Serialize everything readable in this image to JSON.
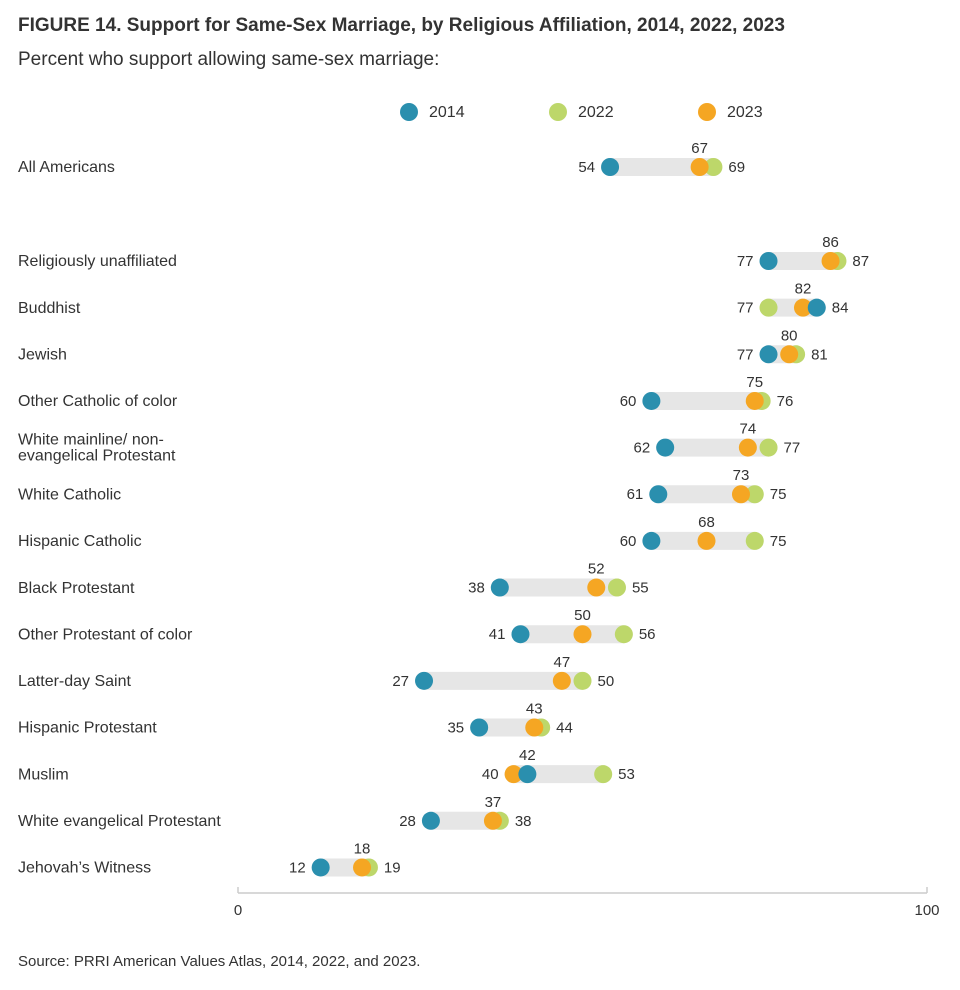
{
  "chart_data": {
    "type": "dumbbell",
    "title": "FIGURE 14.  Support for Same-Sex Marriage, by Religious Affiliation, 2014, 2022, 2023",
    "subtitle": "Percent who support allowing same-sex marriage:",
    "source": "Source: PRRI American Values Atlas, 2014, 2022, and 2023.",
    "categories": [
      "All Americans",
      "Religiously unaffiliated",
      "Buddhist",
      "Jewish",
      "Other Catholic of color",
      "White mainline/ non-evangelical Protestant",
      "White Catholic",
      "Hispanic Catholic",
      "Black Protestant",
      "Other Protestant of color",
      "Latter-day Saint",
      "Hispanic Protestant",
      "Muslim",
      "White evangelical Protestant",
      "Jehovah’s Witness"
    ],
    "series": [
      {
        "name": "2014",
        "color": "#2a8fae",
        "values": [
          54,
          77,
          84,
          77,
          60,
          62,
          61,
          60,
          38,
          41,
          27,
          35,
          42,
          28,
          12
        ]
      },
      {
        "name": "2022",
        "color": "#bdd76a",
        "values": [
          69,
          87,
          77,
          81,
          76,
          77,
          75,
          75,
          55,
          56,
          50,
          44,
          53,
          38,
          19
        ]
      },
      {
        "name": "2023",
        "color": "#f5a623",
        "values": [
          67,
          86,
          82,
          80,
          75,
          74,
          73,
          68,
          52,
          50,
          47,
          43,
          40,
          37,
          18
        ]
      }
    ],
    "xlim": [
      0,
      100
    ],
    "xticks": [
      0,
      100
    ]
  }
}
